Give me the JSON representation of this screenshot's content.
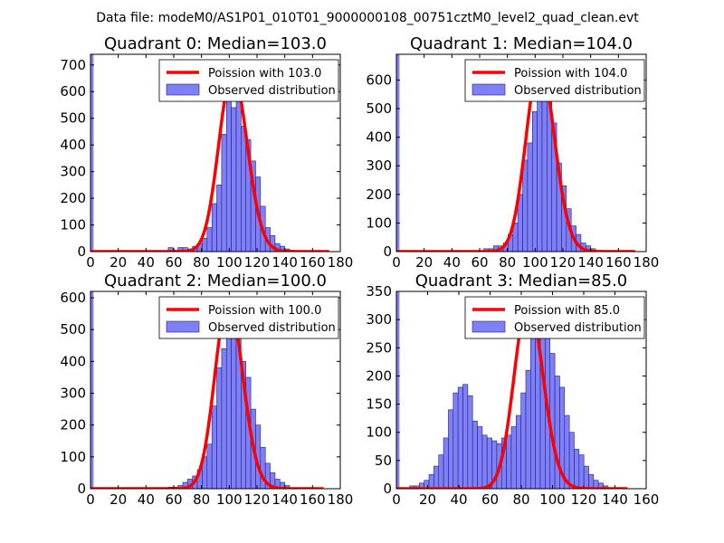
{
  "figure_title": "Data file: modeM0/AS1P01_010T01_9000000108_00751cztM0_level2_quad_clean.evt",
  "colors": {
    "bar_fill": "#7f7ff7",
    "bar_edge": "#1f1f7f",
    "poisson": "#ff0000",
    "text": "#000000"
  },
  "chart_data": [
    {
      "type": "bar",
      "title": "Quadrant 0: Median=103.0",
      "xlim": [
        0,
        180
      ],
      "ylim": [
        0,
        740
      ],
      "xticks": [
        0,
        20,
        40,
        60,
        80,
        100,
        120,
        140,
        160,
        180
      ],
      "yticks": [
        0,
        100,
        200,
        300,
        400,
        500,
        600,
        700
      ],
      "bin_width": 3.5,
      "zero_bar": 740,
      "histogram": [
        [
          56,
          15
        ],
        [
          59.5,
          5
        ],
        [
          63,
          15
        ],
        [
          66.5,
          15
        ],
        [
          70,
          10
        ],
        [
          73.5,
          20
        ],
        [
          77,
          30
        ],
        [
          80.5,
          50
        ],
        [
          84,
          90
        ],
        [
          87.5,
          180
        ],
        [
          91,
          250
        ],
        [
          94.5,
          440
        ],
        [
          98,
          590
        ],
        [
          101.5,
          540
        ],
        [
          105,
          640
        ],
        [
          108.5,
          470
        ],
        [
          112,
          420
        ],
        [
          115.5,
          340
        ],
        [
          119,
          280
        ],
        [
          122.5,
          170
        ],
        [
          126,
          90
        ],
        [
          129.5,
          60
        ],
        [
          133,
          30
        ],
        [
          136.5,
          20
        ],
        [
          140,
          10
        ],
        [
          143.5,
          5
        ]
      ],
      "poisson_mean": 103.0,
      "poisson_peak": 672,
      "poisson_xrange": [
        0,
        172
      ],
      "legend": [
        "Poission with 103.0",
        "Observed distribution"
      ]
    },
    {
      "type": "bar",
      "title": "Quadrant 1: Median=104.0",
      "xlim": [
        0,
        180
      ],
      "ylim": [
        0,
        690
      ],
      "xticks": [
        0,
        20,
        40,
        60,
        80,
        100,
        120,
        140,
        160,
        180
      ],
      "yticks": [
        0,
        100,
        200,
        300,
        400,
        500,
        600
      ],
      "bin_width": 3.5,
      "zero_bar": 690,
      "histogram": [
        [
          63,
          10
        ],
        [
          66.5,
          10
        ],
        [
          70,
          20
        ],
        [
          73.5,
          20
        ],
        [
          77,
          30
        ],
        [
          80.5,
          60
        ],
        [
          84,
          100
        ],
        [
          87.5,
          200
        ],
        [
          91,
          320
        ],
        [
          94.5,
          380
        ],
        [
          98,
          490
        ],
        [
          101.5,
          550
        ],
        [
          105,
          650
        ],
        [
          108.5,
          590
        ],
        [
          112,
          450
        ],
        [
          115.5,
          310
        ],
        [
          119,
          230
        ],
        [
          122.5,
          150
        ],
        [
          126,
          90
        ],
        [
          129.5,
          60
        ],
        [
          133,
          30
        ],
        [
          136.5,
          20
        ],
        [
          140,
          10
        ]
      ],
      "poisson_mean": 104.0,
      "poisson_peak": 660,
      "poisson_xrange": [
        0,
        172
      ],
      "legend": [
        "Poission with 104.0",
        "Observed distribution"
      ]
    },
    {
      "type": "bar",
      "title": "Quadrant 2: Median=100.0",
      "xlim": [
        0,
        180
      ],
      "ylim": [
        0,
        620
      ],
      "xticks": [
        0,
        20,
        40,
        60,
        80,
        100,
        120,
        140,
        160,
        180
      ],
      "yticks": [
        0,
        100,
        200,
        300,
        400,
        500,
        600
      ],
      "bin_width": 3.5,
      "zero_bar": 620,
      "histogram": [
        [
          56,
          5
        ],
        [
          59.5,
          5
        ],
        [
          63,
          10
        ],
        [
          66.5,
          20
        ],
        [
          70,
          30
        ],
        [
          73.5,
          40
        ],
        [
          77,
          60
        ],
        [
          80.5,
          100
        ],
        [
          84,
          140
        ],
        [
          87.5,
          260
        ],
        [
          91,
          380
        ],
        [
          94.5,
          440
        ],
        [
          98,
          580
        ],
        [
          101.5,
          520
        ],
        [
          105,
          570
        ],
        [
          108.5,
          400
        ],
        [
          112,
          350
        ],
        [
          115.5,
          250
        ],
        [
          119,
          200
        ],
        [
          122.5,
          130
        ],
        [
          126,
          80
        ],
        [
          129.5,
          50
        ],
        [
          133,
          30
        ],
        [
          136.5,
          20
        ],
        [
          140,
          10
        ]
      ],
      "poisson_mean": 100.0,
      "poisson_peak": 594,
      "poisson_xrange": [
        0,
        168
      ],
      "legend": [
        "Poission with 100.0",
        "Observed distribution"
      ]
    },
    {
      "type": "bar",
      "title": "Quadrant 3: Median=85.0",
      "xlim": [
        0,
        160
      ],
      "ylim": [
        0,
        350
      ],
      "xticks": [
        0,
        20,
        40,
        60,
        80,
        100,
        120,
        140,
        160
      ],
      "yticks": [
        0,
        50,
        100,
        150,
        200,
        250,
        300,
        350
      ],
      "bin_width": 3.1,
      "zero_bar": 350,
      "histogram": [
        [
          8.5,
          5
        ],
        [
          11.6,
          5
        ],
        [
          14.7,
          10
        ],
        [
          17.8,
          15
        ],
        [
          20.9,
          25
        ],
        [
          24,
          40
        ],
        [
          27.1,
          60
        ],
        [
          30.2,
          90
        ],
        [
          33.3,
          140
        ],
        [
          36.4,
          170
        ],
        [
          39.5,
          180
        ],
        [
          42.6,
          185
        ],
        [
          45.7,
          165
        ],
        [
          48.8,
          120
        ],
        [
          51.9,
          110
        ],
        [
          55,
          95
        ],
        [
          58.1,
          90
        ],
        [
          61.2,
          85
        ],
        [
          64.3,
          80
        ],
        [
          67.4,
          90
        ],
        [
          70.5,
          95
        ],
        [
          73.6,
          110
        ],
        [
          76.7,
          130
        ],
        [
          79.8,
          170
        ],
        [
          82.9,
          210
        ],
        [
          86,
          270
        ],
        [
          89.1,
          320
        ],
        [
          92.2,
          330
        ],
        [
          95.3,
          270
        ],
        [
          98.4,
          240
        ],
        [
          101.5,
          200
        ],
        [
          104.6,
          180
        ],
        [
          107.7,
          130
        ],
        [
          110.8,
          100
        ],
        [
          113.9,
          70
        ],
        [
          117,
          60
        ],
        [
          120.1,
          40
        ],
        [
          123.2,
          25
        ],
        [
          126.3,
          15
        ],
        [
          129.4,
          10
        ],
        [
          132.5,
          5
        ]
      ],
      "poisson_mean": 85.0,
      "poisson_peak": 332,
      "poisson_xrange": [
        0,
        148
      ],
      "legend": [
        "Poission with 85.0",
        "Observed distribution"
      ]
    }
  ]
}
